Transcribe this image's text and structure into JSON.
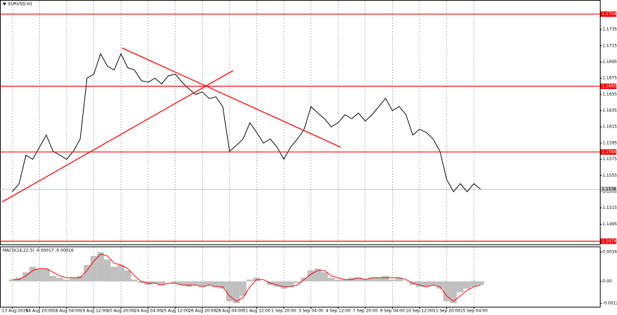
{
  "chart_data": [
    {
      "type": "line",
      "title": "EURUSD,H1",
      "color": "#000000",
      "values": [
        1.1535,
        1.1545,
        1.158,
        1.1575,
        1.159,
        1.1605,
        1.1585,
        1.158,
        1.1575,
        1.1585,
        1.16,
        1.1675,
        1.168,
        1.1705,
        1.169,
        1.1685,
        1.1705,
        1.1688,
        1.1685,
        1.1672,
        1.167,
        1.1675,
        1.1668,
        1.1678,
        1.168,
        1.167,
        1.1662,
        1.1655,
        1.1658,
        1.165,
        1.1652,
        1.164,
        1.1585,
        1.1592,
        1.16,
        1.162,
        1.1608,
        1.1595,
        1.16,
        1.159,
        1.1575,
        1.159,
        1.16,
        1.1612,
        1.164,
        1.1632,
        1.1625,
        1.1615,
        1.162,
        1.163,
        1.1625,
        1.1632,
        1.1622,
        1.163,
        1.164,
        1.165,
        1.1635,
        1.164,
        1.163,
        1.1605,
        1.1612,
        1.1608,
        1.16,
        1.1585,
        1.155,
        1.1535,
        1.1545,
        1.1535,
        1.1545,
        1.1538
      ],
      "xticks": [
        {
          "value": 0,
          "label": "13 Aug 2026"
        },
        {
          "value": 4,
          "label": "14 Aug 20:00"
        },
        {
          "value": 8,
          "label": "18 Aug 04:00"
        },
        {
          "value": 12,
          "label": "19 Aug 12:00"
        },
        {
          "value": 16,
          "label": "20 Aug 20:00"
        },
        {
          "value": 20,
          "label": "24 Aug 04:00"
        },
        {
          "value": 24,
          "label": "25 Aug 12:00"
        },
        {
          "value": 28,
          "label": "26 Aug 20:00"
        },
        {
          "value": 32,
          "label": "28 Aug 04:00"
        },
        {
          "value": 36,
          "label": "31 Aug 12:00"
        },
        {
          "value": 40,
          "label": "1 Sep 20:00"
        },
        {
          "value": 44,
          "label": "3 Sep 04:00"
        },
        {
          "value": 48,
          "label": "4 Sep 12:00"
        },
        {
          "value": 52,
          "label": "7 Sep 20:00"
        },
        {
          "value": 56,
          "label": "9 Sep 04:00"
        },
        {
          "value": 60,
          "label": "10 Sep 12:00"
        },
        {
          "value": 64,
          "label": "11 Sep 20:00"
        },
        {
          "value": 68,
          "label": "15 Sep 04:00"
        }
      ],
      "ylim": [
        1.147,
        1.1768
      ],
      "yticks": [
        1.1735,
        1.1715,
        1.1695,
        1.1675,
        1.1655,
        1.1635,
        1.1615,
        1.1595,
        1.1575,
        1.1555,
        1.1535,
        1.1515,
        1.1495
      ],
      "levels": [
        1.1754,
        1.1665,
        1.1584,
        1.1474
      ],
      "level_color": "#ff0000",
      "last_price": 1.1538,
      "grid": "x"
    },
    {
      "type": "histogram",
      "title": "MACD(14,22,3) -0.00017 -0.00016",
      "series": [
        {
          "color": "#c0c0c0",
          "values": [
            0.0001,
            0.0002,
            0.0005,
            0.0008,
            0.0007,
            0.0007,
            0.0003,
            0.0002,
            0.0001,
            0.0002,
            0.0003,
            0.0009,
            0.0014,
            0.0016,
            0.0012,
            0.0008,
            0.0009,
            0.0006,
            0.0001,
            -0.0001,
            -0.0002,
            -0.0001,
            -0.0002,
            0.0,
            -0.0001,
            -0.0002,
            -0.0003,
            -0.0002,
            -0.0003,
            -0.0002,
            -0.0003,
            -0.0004,
            -0.0011,
            -0.0012,
            -0.0008,
            0.0001,
            0.0002,
            0.0,
            -0.0002,
            -0.0003,
            -0.0004,
            -0.0003,
            -0.0001,
            0.0002,
            0.0006,
            0.0007,
            0.0005,
            0.0002,
            0.0001,
            0.0001,
            0.0002,
            0.0002,
            0.0001,
            0.0002,
            0.0002,
            0.0003,
            0.0001,
            0.0002,
            0.0,
            -0.0002,
            -0.0003,
            -0.0003,
            -0.0002,
            -0.0004,
            -0.0011,
            -0.0012,
            -0.0006,
            -0.0004,
            -0.0003,
            -0.0002
          ]
        },
        {
          "color": "#ff0000",
          "values": [
            0.0001,
            0.0001,
            0.0003,
            0.0006,
            0.0007,
            0.0007,
            0.0005,
            0.0003,
            0.0002,
            0.0002,
            0.0002,
            0.0006,
            0.0011,
            0.0015,
            0.0014,
            0.001,
            0.0009,
            0.0007,
            0.0003,
            0.0,
            -0.0001,
            -0.0001,
            -0.0002,
            -0.0001,
            -0.0001,
            -0.0002,
            -0.0002,
            -0.0002,
            -0.0003,
            -0.0002,
            -0.0003,
            -0.0003,
            -0.0008,
            -0.0011,
            -0.0009,
            -0.0003,
            0.0001,
            0.0001,
            -0.0001,
            -0.0002,
            -0.0003,
            -0.0003,
            -0.0002,
            0.0001,
            0.0004,
            0.0006,
            0.0006,
            0.0003,
            0.0002,
            0.0001,
            0.0001,
            0.0002,
            0.0001,
            0.0002,
            0.0002,
            0.0002,
            0.0002,
            0.0002,
            0.0001,
            -0.0001,
            -0.0002,
            -0.0003,
            -0.0002,
            -0.0003,
            -0.0008,
            -0.0011,
            -0.0008,
            -0.0005,
            -0.0003,
            -0.0002
          ]
        }
      ],
      "ylim": [
        -0.0014,
        0.00188
      ],
      "yticks": [
        0.00162,
        {
          "value": 0,
          "label": "0.00"
        },
        -0.00122
      ]
    }
  ]
}
